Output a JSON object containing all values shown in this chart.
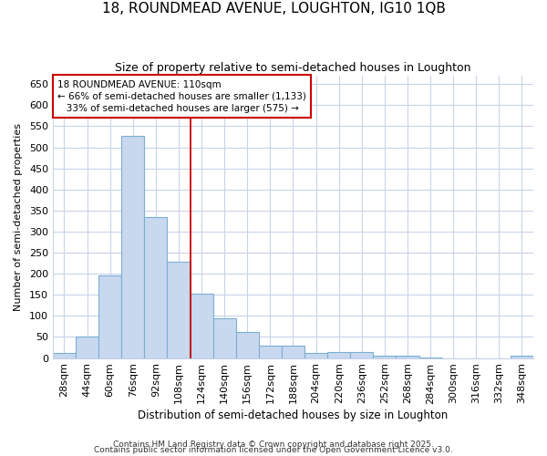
{
  "title1": "18, ROUNDMEAD AVENUE, LOUGHTON, IG10 1QB",
  "title2": "Size of property relative to semi-detached houses in Loughton",
  "xlabel": "Distribution of semi-detached houses by size in Loughton",
  "ylabel": "Number of semi-detached properties",
  "categories": [
    "28sqm",
    "44sqm",
    "60sqm",
    "76sqm",
    "92sqm",
    "108sqm",
    "124sqm",
    "140sqm",
    "156sqm",
    "172sqm",
    "188sqm",
    "204sqm",
    "220sqm",
    "236sqm",
    "252sqm",
    "268sqm",
    "284sqm",
    "300sqm",
    "316sqm",
    "332sqm",
    "348sqm"
  ],
  "values": [
    12,
    50,
    195,
    527,
    335,
    228,
    152,
    95,
    62,
    30,
    30,
    12,
    15,
    15,
    5,
    5,
    1,
    0,
    0,
    0,
    5
  ],
  "bar_color": "#c8d8ef",
  "bar_edge_color": "#7bafd4",
  "property_line_idx": 5.5,
  "annotation_line1": "18 ROUNDMEAD AVENUE: 110sqm",
  "annotation_line2": "← 66% of semi-detached houses are smaller (1,133)",
  "annotation_line3": "   33% of semi-detached houses are larger (575) →",
  "ylim": [
    0,
    670
  ],
  "yticks": [
    0,
    50,
    100,
    150,
    200,
    250,
    300,
    350,
    400,
    450,
    500,
    550,
    600,
    650
  ],
  "bg_color": "#ffffff",
  "grid_color": "#c8d4e8",
  "footer1": "Contains HM Land Registry data © Crown copyright and database right 2025.",
  "footer2": "Contains public sector information licensed under the Open Government Licence v3.0.",
  "title1_fontsize": 11,
  "title2_fontsize": 9,
  "xlabel_fontsize": 8.5,
  "ylabel_fontsize": 8,
  "tick_fontsize": 8,
  "footer_fontsize": 6.5
}
